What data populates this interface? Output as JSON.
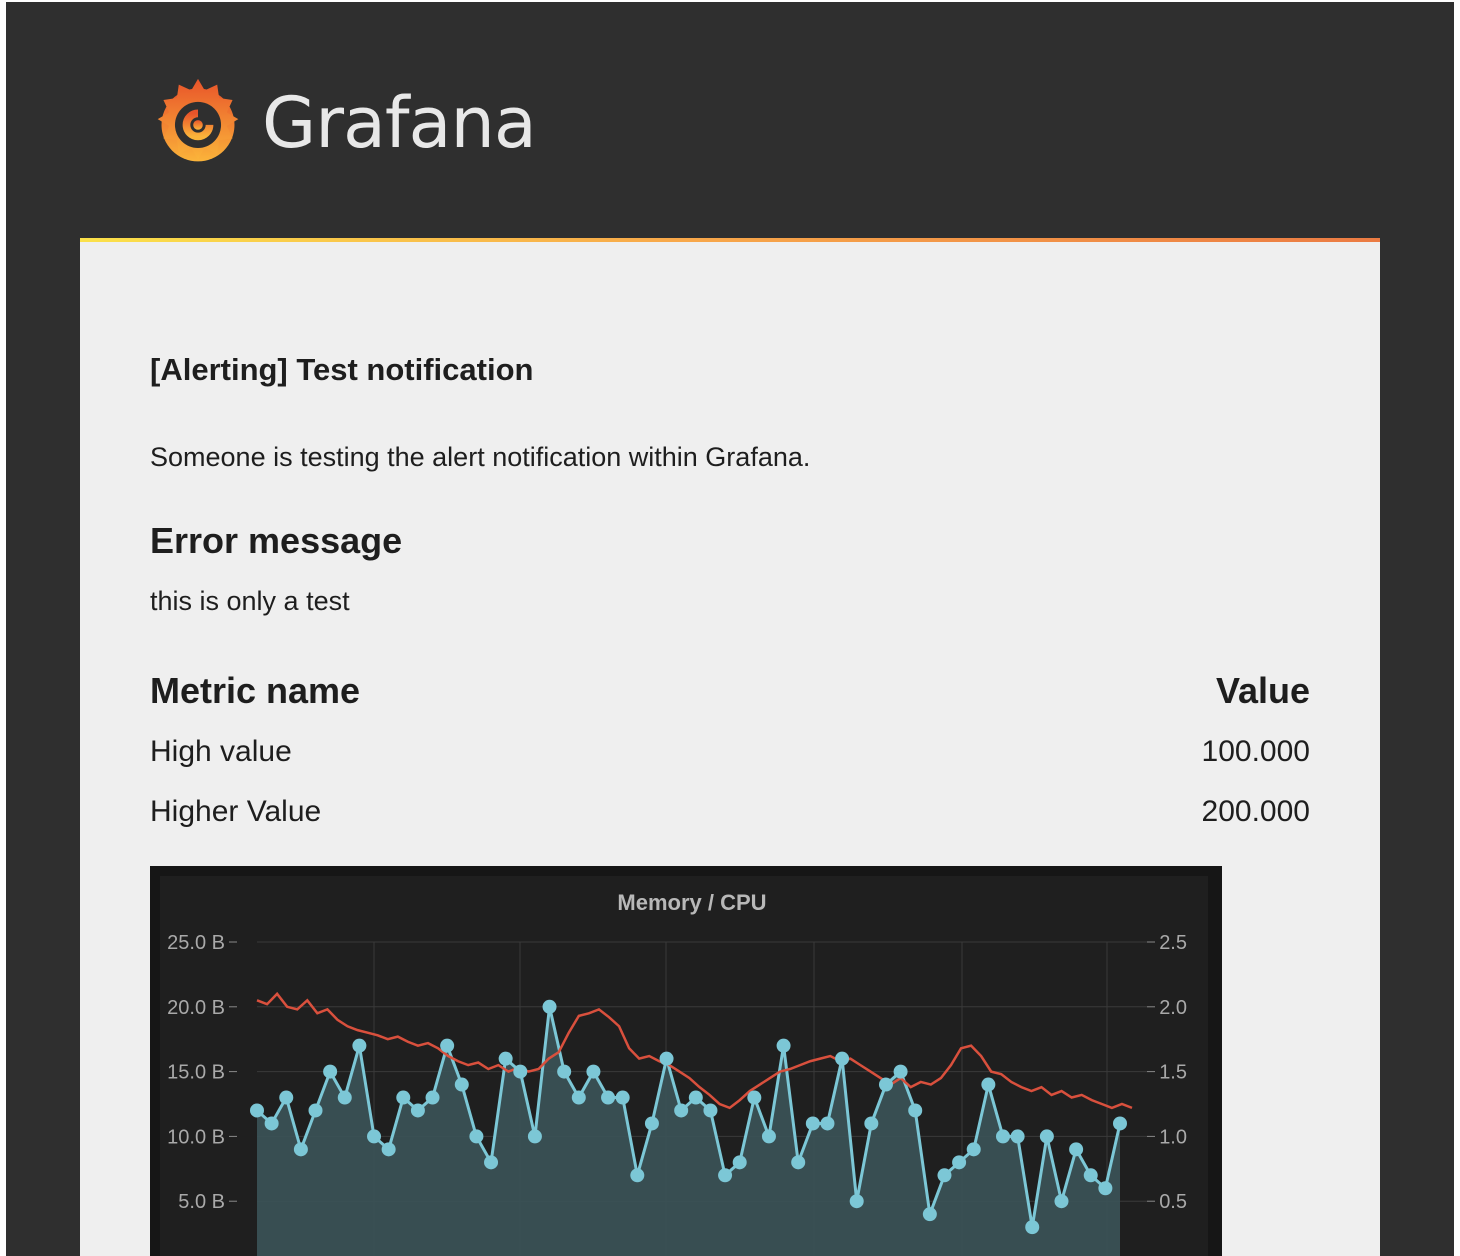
{
  "brand": {
    "name": "Grafana",
    "logo_icon": "grafana-swirl-icon"
  },
  "email": {
    "title": "[Alerting] Test notification",
    "description": "Someone is testing the alert notification within Grafana.",
    "error_heading": "Error message",
    "error_text": "this is only a test",
    "metrics": {
      "header": {
        "name": "Metric name",
        "value": "Value"
      },
      "rows": [
        {
          "name": "High value",
          "value": "100.000"
        },
        {
          "name": "Higher Value",
          "value": "200.000"
        }
      ]
    }
  },
  "colors": {
    "accent_gradient": [
      "#fbe14a",
      "#f8a94a",
      "#eb7b43"
    ],
    "series_memory": "#7cc7d6",
    "series_cpu": "#d9503d"
  },
  "chart_data": {
    "type": "line",
    "title": "Memory / CPU",
    "yticks_left": [
      "25.0 B",
      "20.0 B",
      "15.0 B",
      "10.0 B",
      "5.0 B"
    ],
    "yticks_right": [
      "2.5",
      "2.0",
      "1.5",
      "1.0",
      "0.5"
    ],
    "ylim_left": [
      0,
      25
    ],
    "ylim_right": [
      0,
      2.5
    ],
    "grid": true,
    "series": [
      {
        "axis": "left",
        "style": "area-points",
        "values": [
          12,
          11,
          13,
          9,
          12,
          15,
          13,
          17,
          10,
          9,
          13,
          12,
          13,
          17,
          14,
          10,
          8,
          16,
          15,
          10,
          20,
          15,
          13,
          15,
          13,
          13,
          7,
          11,
          16,
          12,
          13,
          12,
          7,
          8,
          13,
          10,
          17,
          8,
          11,
          11,
          16,
          5,
          11,
          14,
          15,
          12,
          4,
          7,
          8,
          9,
          14,
          10,
          10,
          3,
          10,
          5,
          9,
          7,
          6,
          11
        ]
      },
      {
        "axis": "right",
        "style": "line",
        "values": [
          2.05,
          2.02,
          2.1,
          2.0,
          1.98,
          2.05,
          1.95,
          1.98,
          1.9,
          1.85,
          1.82,
          1.8,
          1.78,
          1.75,
          1.77,
          1.73,
          1.7,
          1.72,
          1.68,
          1.62,
          1.58,
          1.55,
          1.57,
          1.52,
          1.55,
          1.5,
          1.53,
          1.5,
          1.52,
          1.6,
          1.65,
          1.8,
          1.93,
          1.95,
          1.98,
          1.92,
          1.85,
          1.68,
          1.6,
          1.62,
          1.58,
          1.55,
          1.5,
          1.45,
          1.38,
          1.32,
          1.25,
          1.22,
          1.28,
          1.35,
          1.4,
          1.45,
          1.5,
          1.52,
          1.55,
          1.58,
          1.6,
          1.62,
          1.58,
          1.6,
          1.55,
          1.5,
          1.45,
          1.4,
          1.45,
          1.38,
          1.42,
          1.4,
          1.45,
          1.55,
          1.68,
          1.7,
          1.62,
          1.5,
          1.48,
          1.42,
          1.38,
          1.35,
          1.38,
          1.32,
          1.35,
          1.3,
          1.32,
          1.28,
          1.25,
          1.22,
          1.25,
          1.22
        ]
      }
    ]
  }
}
